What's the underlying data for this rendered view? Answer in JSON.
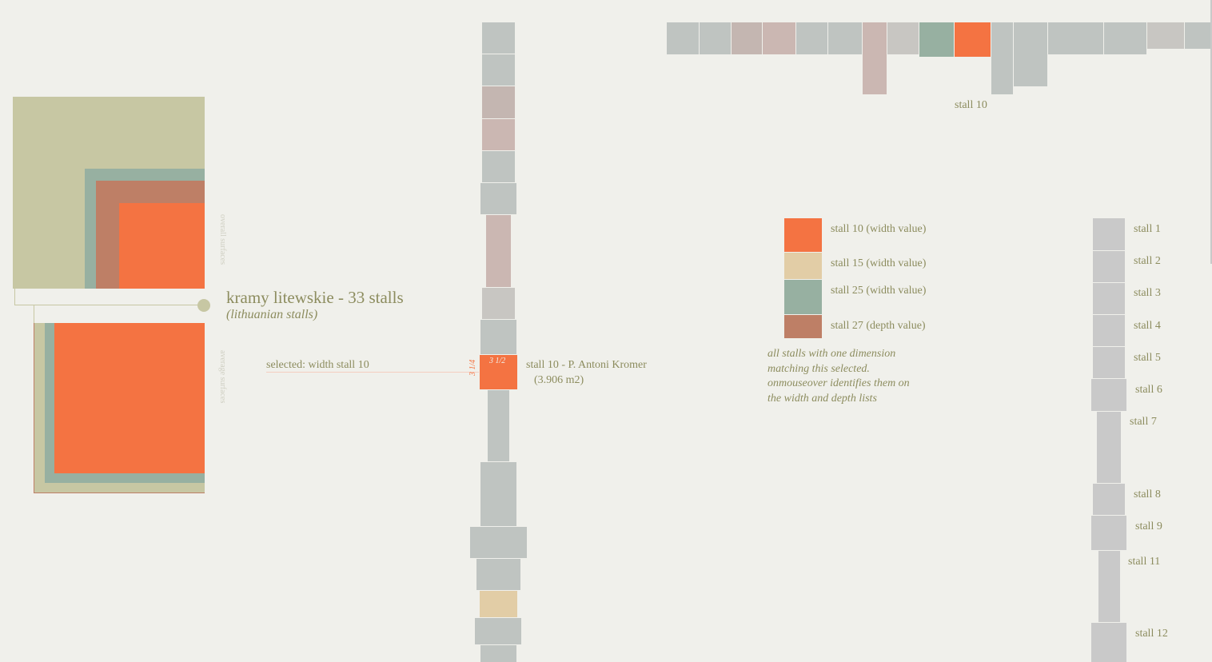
{
  "header": {
    "title": "kramy litewskie - 33 stalls",
    "subtitle": "(lithuanian stalls)"
  },
  "surfaces": {
    "overall_label": "overall surfaces",
    "average_label": "average surfaces"
  },
  "selection": {
    "label": "selected: width stall 10",
    "stall_name": "stall 10 - P. Antoni Kromer",
    "stall_area": "(3.906 m2)",
    "width_value": "3 1/2",
    "depth_value": "3 1/4"
  },
  "top_strip": {
    "label": "stall 10"
  },
  "legend": [
    {
      "label": "stall 10 (width value)",
      "color": "#f47342"
    },
    {
      "label": "stall 15 (width value)",
      "color": "#e2cda6"
    },
    {
      "label": "stall 25 (width value)",
      "color": "#97b0a1"
    },
    {
      "label": "stall 27 (depth value)",
      "color": "#be7f66"
    }
  ],
  "note": "all stalls with one dimension matching this selected. onmouseover identifies them on the width and depth lists",
  "stall_list": [
    "stall 1",
    "stall 2",
    "stall 3",
    "stall 4",
    "stall 5",
    "stall 6",
    "stall 7",
    "stall 8",
    "stall 9",
    "stall 11",
    "stall 12"
  ],
  "colors": {
    "background": "#f0f0eb",
    "gray": "#bfc4c1",
    "pink": "#cbb7b2",
    "selected": "#f47342",
    "olive": "#c7c7a3",
    "teal": "#97b0a1",
    "brown": "#be7f66",
    "sand": "#e2cda6"
  },
  "chart_data": {
    "type": "bar",
    "title": "kramy litewskie - 33 stalls",
    "selected_stall": "stall 10",
    "selected_width": "3 1/2",
    "selected_depth": "3 1/4",
    "selected_area_m2": 3.906
  }
}
